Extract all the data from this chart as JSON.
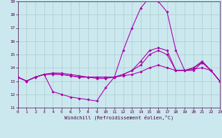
{
  "title": "",
  "xlabel": "Windchill (Refroidissement éolien,°C)",
  "ylabel": "",
  "background_color": "#cce8ef",
  "grid_color": "#aacccc",
  "line_color": "#aa00aa",
  "xlim": [
    0,
    23
  ],
  "ylim": [
    11,
    19
  ],
  "xticks": [
    0,
    1,
    2,
    3,
    4,
    5,
    6,
    7,
    8,
    9,
    10,
    11,
    12,
    13,
    14,
    15,
    16,
    17,
    18,
    19,
    20,
    21,
    22,
    23
  ],
  "yticks": [
    11,
    12,
    13,
    14,
    15,
    16,
    17,
    18,
    19
  ],
  "series": [
    {
      "x": [
        0,
        1,
        2,
        3,
        4,
        5,
        6,
        7,
        8,
        9,
        10,
        11,
        12,
        13,
        14,
        15,
        16,
        17,
        18,
        19,
        20,
        21,
        22,
        23
      ],
      "y": [
        13.3,
        13.0,
        13.3,
        13.5,
        12.2,
        12.0,
        11.8,
        11.7,
        11.6,
        11.5,
        12.5,
        13.3,
        15.3,
        17.0,
        18.5,
        19.3,
        19.0,
        18.2,
        15.3,
        13.8,
        13.8,
        14.4,
        13.8,
        13.0
      ]
    },
    {
      "x": [
        0,
        1,
        2,
        3,
        4,
        5,
        6,
        7,
        8,
        9,
        10,
        11,
        12,
        13,
        14,
        15,
        16,
        17,
        18,
        19,
        20,
        21,
        22,
        23
      ],
      "y": [
        13.3,
        13.0,
        13.3,
        13.5,
        13.6,
        13.6,
        13.5,
        13.4,
        13.3,
        13.3,
        13.3,
        13.3,
        13.5,
        13.8,
        14.5,
        15.3,
        15.5,
        15.3,
        13.8,
        13.8,
        14.0,
        14.4,
        13.8,
        13.0
      ]
    },
    {
      "x": [
        0,
        1,
        2,
        3,
        4,
        5,
        6,
        7,
        8,
        9,
        10,
        11,
        12,
        13,
        14,
        15,
        16,
        17,
        18,
        19,
        20,
        21,
        22,
        23
      ],
      "y": [
        13.3,
        13.0,
        13.3,
        13.5,
        13.5,
        13.5,
        13.4,
        13.3,
        13.3,
        13.3,
        13.3,
        13.3,
        13.4,
        13.5,
        13.7,
        14.0,
        14.2,
        14.0,
        13.8,
        13.8,
        13.9,
        14.0,
        13.8,
        13.0
      ]
    },
    {
      "x": [
        0,
        1,
        2,
        3,
        4,
        5,
        6,
        7,
        8,
        9,
        10,
        11,
        12,
        13,
        14,
        15,
        16,
        17,
        18,
        19,
        20,
        21,
        22,
        23
      ],
      "y": [
        13.3,
        13.0,
        13.3,
        13.5,
        13.6,
        13.5,
        13.4,
        13.3,
        13.3,
        13.2,
        13.2,
        13.3,
        13.5,
        13.8,
        14.2,
        15.0,
        15.3,
        15.0,
        13.8,
        13.8,
        14.0,
        14.5,
        13.8,
        13.0
      ]
    }
  ]
}
